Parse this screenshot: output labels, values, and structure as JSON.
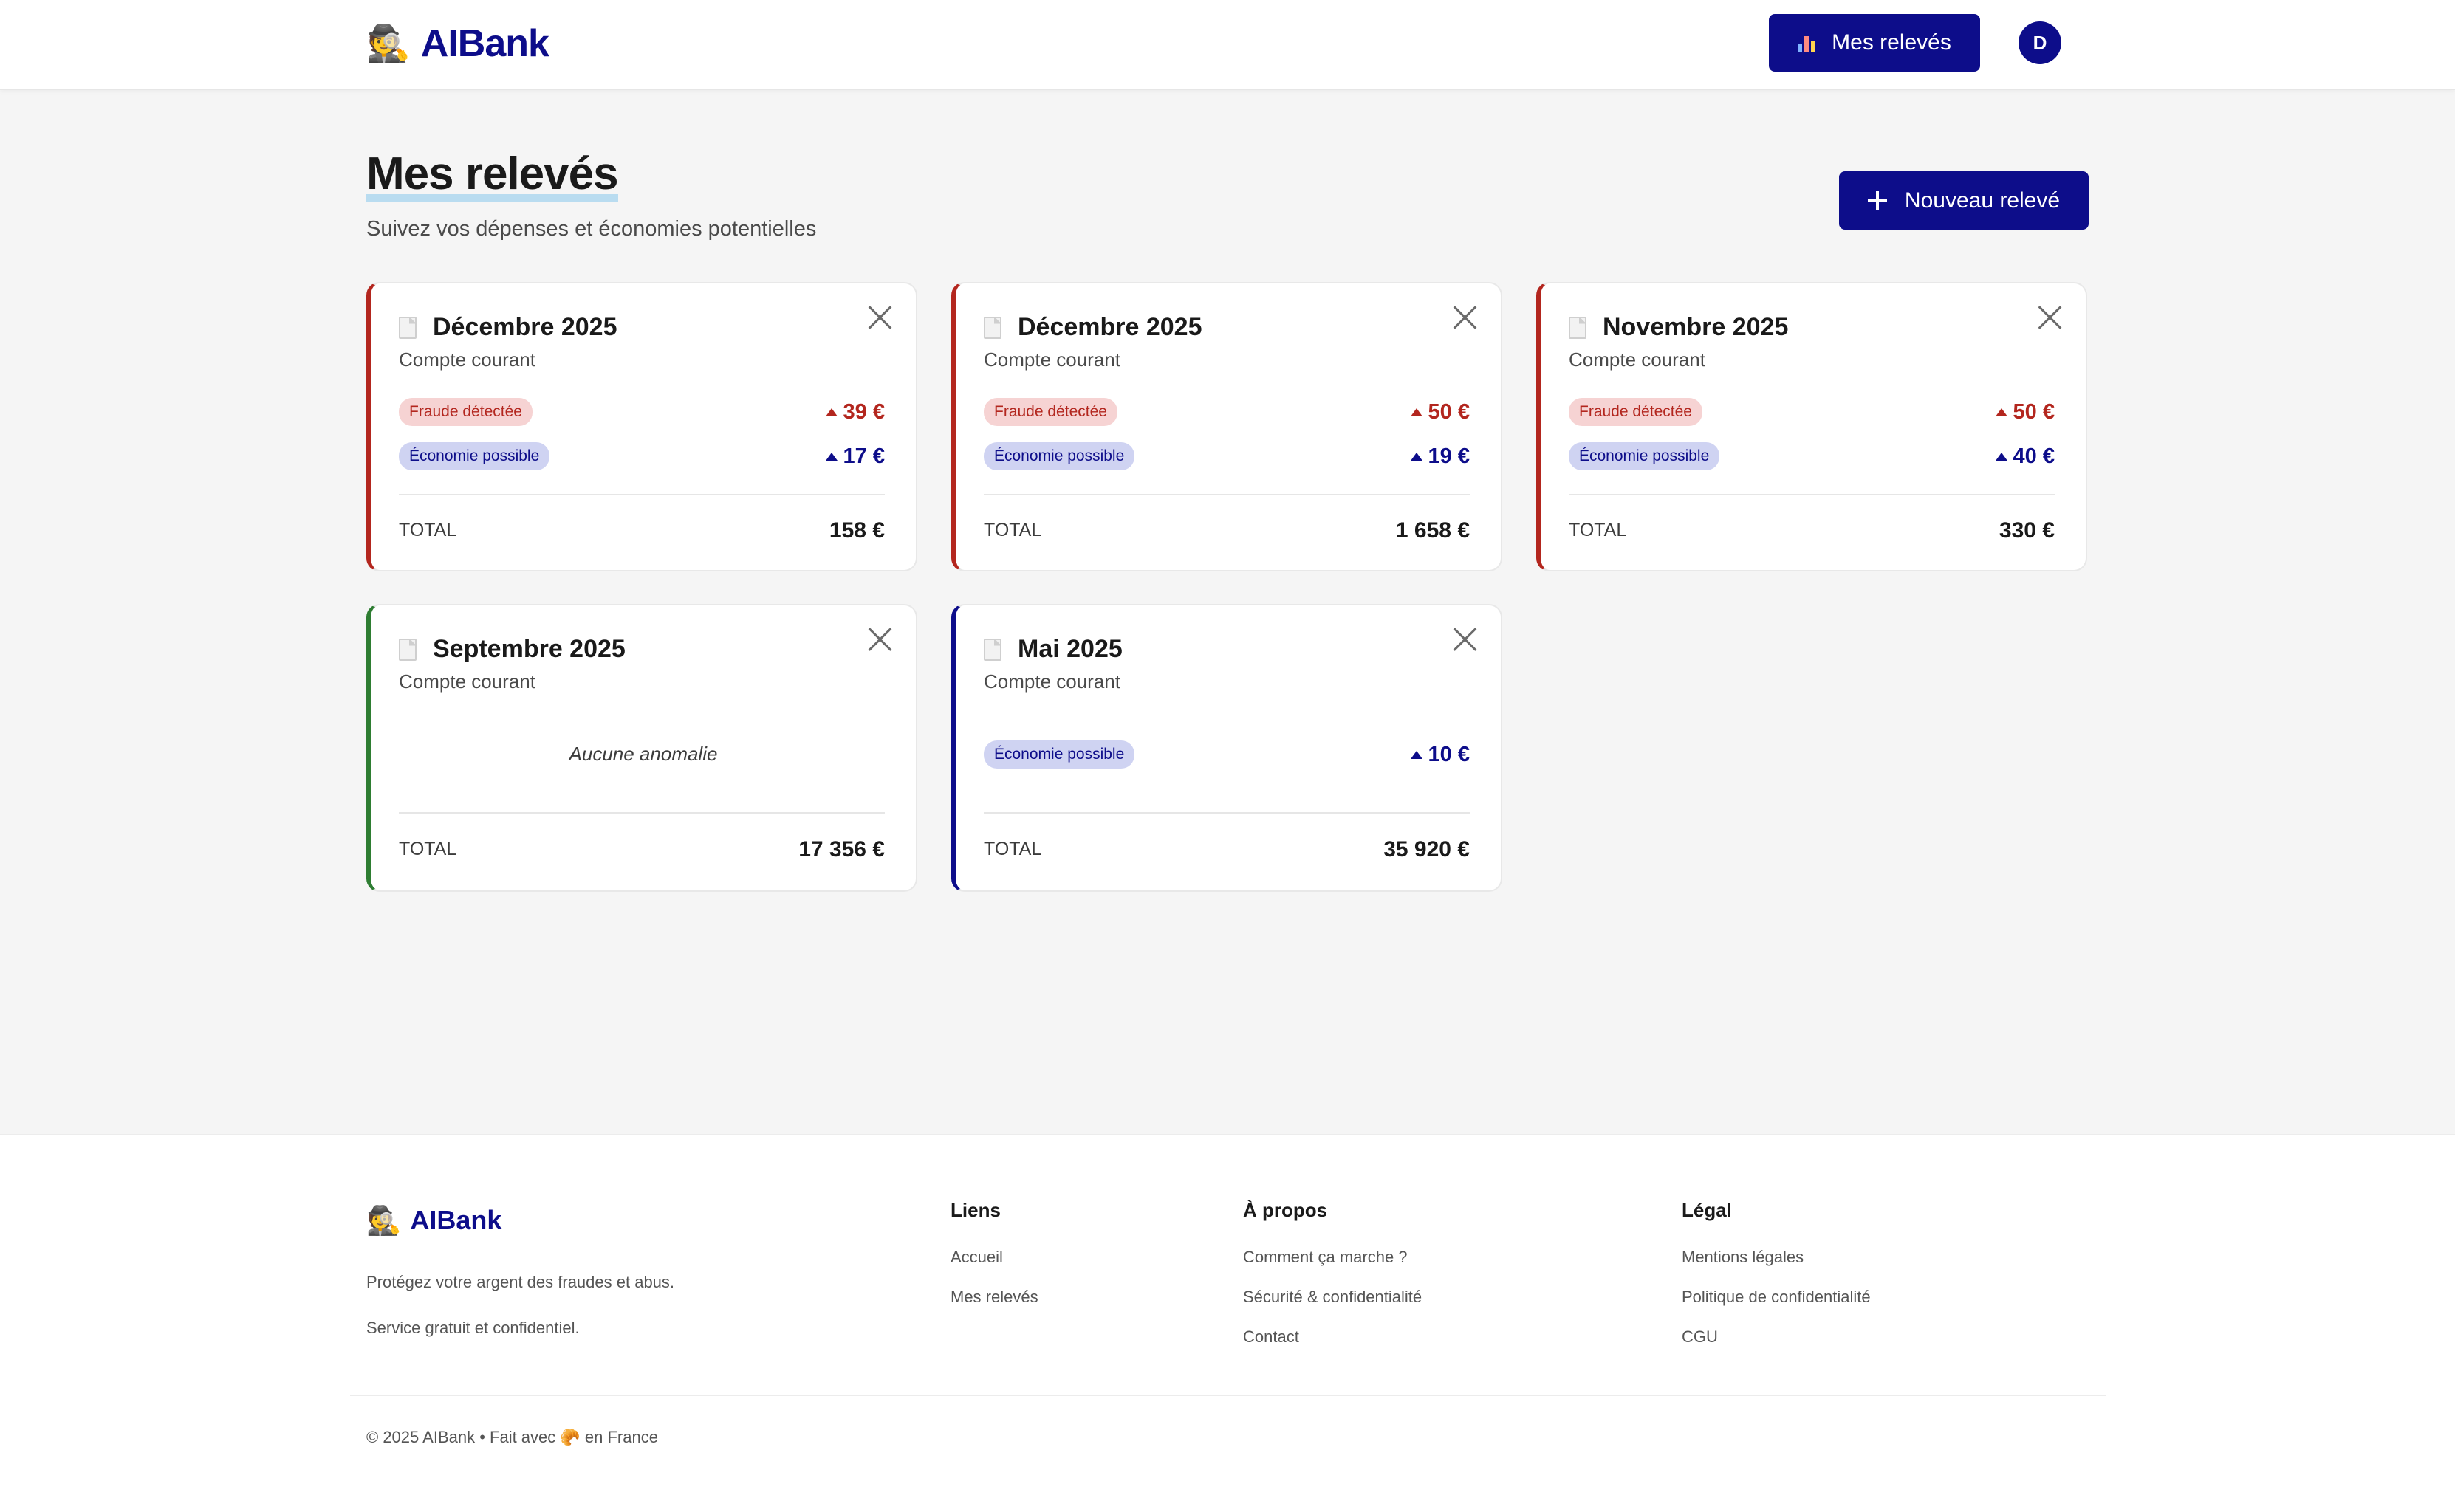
{
  "header": {
    "brand_emoji": "🕵️",
    "brand_name": "AIBank",
    "nav_button_label": "Mes relevés",
    "nav_button_icon": "bar-chart-icon",
    "avatar_initial": "D"
  },
  "page": {
    "title": "Mes relevés",
    "subtitle": "Suivez vos dépenses et économies potentielles",
    "new_button_label": "Nouveau relevé"
  },
  "cards": [
    {
      "title": "Décembre 2025",
      "account": "Compte courant",
      "fraud_label": "Fraude détectée",
      "fraud_amount": "39 €",
      "eco_label": "Économie possible",
      "eco_amount": "17 €",
      "total_label": "TOTAL",
      "total": "158 €"
    },
    {
      "title": "Décembre 2025",
      "account": "Compte courant",
      "fraud_label": "Fraude détectée",
      "fraud_amount": "50 €",
      "eco_label": "Économie possible",
      "eco_amount": "19 €",
      "total_label": "TOTAL",
      "total": "1 658 €"
    },
    {
      "title": "Novembre 2025",
      "account": "Compte courant",
      "fraud_label": "Fraude détectée",
      "fraud_amount": "50 €",
      "eco_label": "Économie possible",
      "eco_amount": "40 €",
      "total_label": "TOTAL",
      "total": "330 €"
    },
    {
      "title": "Septembre 2025",
      "account": "Compte courant",
      "status_text": "Aucune anomalie",
      "total_label": "TOTAL",
      "total": "17 356 €"
    },
    {
      "title": "Mai 2025",
      "account": "Compte courant",
      "eco_label": "Économie possible",
      "eco_amount": "10 €",
      "total_label": "TOTAL",
      "total": "35 920 €"
    }
  ],
  "footer": {
    "brand_emoji": "🕵️",
    "brand_name": "AIBank",
    "tagline1": "Protégez votre argent des fraudes et abus.",
    "tagline2": "Service gratuit et confidentiel.",
    "col_links_title": "Liens",
    "links": [
      "Accueil",
      "Mes relevés"
    ],
    "col_about_title": "À propos",
    "about": [
      "Comment ça marche ?",
      "Sécurité & confidentialité",
      "Contact"
    ],
    "col_legal_title": "Légal",
    "legal": [
      "Mentions légales",
      "Politique de confidentialité",
      "CGU"
    ],
    "copyright": "© 2025 AIBank • Fait avec 🥐 en France"
  },
  "colors": {
    "primary": "#0d0d8a",
    "fraud": "#b3261e",
    "ok": "#2e7d32",
    "background": "#f5f5f5"
  }
}
